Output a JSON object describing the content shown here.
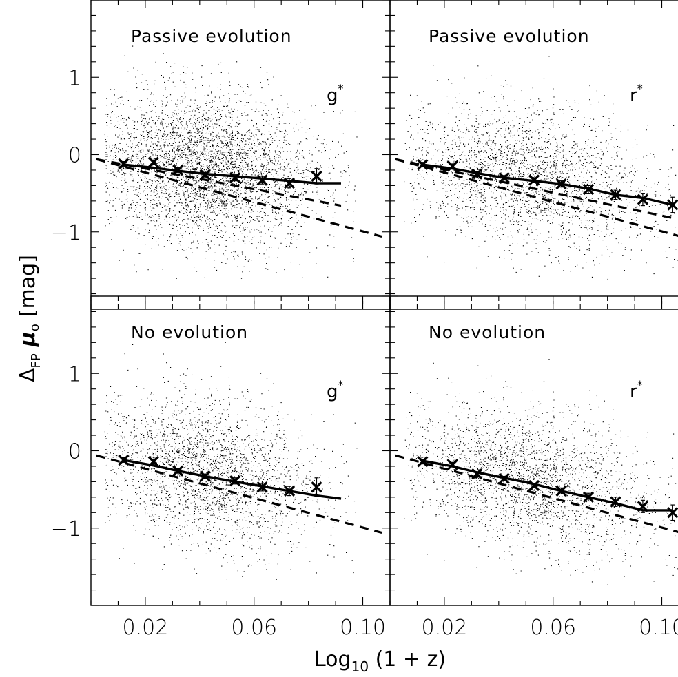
{
  "chart_data": {
    "type": "scatter",
    "xlabel": "Log",
    "xlabel_sub": "10",
    "xlabel_rest": " (1 + z)",
    "ylabel": "Δ",
    "ylabel_sub": "FP",
    "ylabel_mu": "μ",
    "ylabel_mu_sub": "o",
    "ylabel_unit": "[mag]",
    "xlim": [
      0.0,
      0.11
    ],
    "ylim": [
      -2.0,
      2.0
    ],
    "x_ticks": [
      0.02,
      0.06,
      0.1
    ],
    "x_tick_labels": [
      "0.02",
      "0.06",
      "0.10"
    ],
    "y_ticks": [
      1,
      0,
      -1
    ],
    "y_tick_labels": [
      "1",
      "0",
      "−1"
    ],
    "panels": [
      {
        "title": "Passive evolution",
        "band": "g",
        "band_sup": "*",
        "binned_x": [
          0.012,
          0.023,
          0.032,
          0.042,
          0.053,
          0.063,
          0.073,
          0.083
        ],
        "binned_y": [
          -0.12,
          -0.1,
          -0.2,
          -0.26,
          -0.3,
          -0.33,
          -0.37,
          -0.28
        ],
        "binned_err": [
          0.03,
          0.03,
          0.03,
          0.03,
          0.04,
          0.05,
          0.06,
          0.1
        ],
        "fit_line_x": [
          0.012,
          0.023,
          0.032,
          0.042,
          0.053,
          0.063,
          0.073,
          0.083,
          0.092
        ],
        "fit_line_y": [
          -0.13,
          -0.17,
          -0.21,
          -0.25,
          -0.28,
          -0.31,
          -0.34,
          -0.37,
          -0.37
        ],
        "dashed_lines": [
          {
            "x": [
              0.002,
              0.092
            ],
            "y": [
              -0.06,
              -0.66
            ]
          },
          {
            "x": [
              0.002,
              0.107
            ],
            "y": [
              -0.06,
              -1.06
            ]
          }
        ],
        "cloud": {
          "x_mean": 0.042,
          "x_sd": 0.02,
          "x_min": 0.005,
          "x_max": 0.098,
          "y_intercept": -0.05,
          "y_slope": -3.5,
          "y_sd": 0.48,
          "n": 5000
        }
      },
      {
        "title": "Passive evolution",
        "band": "r",
        "band_sup": "*",
        "binned_x": [
          0.012,
          0.023,
          0.032,
          0.042,
          0.053,
          0.063,
          0.073,
          0.083,
          0.093,
          0.104
        ],
        "binned_y": [
          -0.13,
          -0.15,
          -0.25,
          -0.3,
          -0.33,
          -0.38,
          -0.45,
          -0.52,
          -0.58,
          -0.65
        ],
        "binned_err": [
          0.03,
          0.03,
          0.03,
          0.03,
          0.03,
          0.04,
          0.05,
          0.06,
          0.08,
          0.1
        ],
        "fit_line_x": [
          0.012,
          0.023,
          0.032,
          0.042,
          0.053,
          0.063,
          0.073,
          0.083,
          0.093,
          0.104
        ],
        "fit_line_y": [
          -0.13,
          -0.18,
          -0.24,
          -0.3,
          -0.34,
          -0.38,
          -0.44,
          -0.52,
          -0.56,
          -0.65
        ],
        "dashed_lines": [
          {
            "x": [
              0.002,
              0.104
            ],
            "y": [
              -0.06,
              -0.82
            ]
          },
          {
            "x": [
              0.002,
              0.107
            ],
            "y": [
              -0.06,
              -1.06
            ]
          }
        ],
        "cloud": {
          "x_mean": 0.05,
          "x_sd": 0.023,
          "x_min": 0.005,
          "x_max": 0.108,
          "y_intercept": -0.05,
          "y_slope": -5.0,
          "y_sd": 0.45,
          "n": 6500
        }
      },
      {
        "title": "No evolution",
        "band": "g",
        "band_sup": "*",
        "binned_x": [
          0.012,
          0.023,
          0.032,
          0.042,
          0.053,
          0.063,
          0.073,
          0.083
        ],
        "binned_y": [
          -0.12,
          -0.14,
          -0.26,
          -0.33,
          -0.39,
          -0.47,
          -0.52,
          -0.47
        ],
        "binned_err": [
          0.03,
          0.03,
          0.03,
          0.03,
          0.04,
          0.05,
          0.06,
          0.12
        ],
        "fit_line_x": [
          0.012,
          0.023,
          0.032,
          0.042,
          0.053,
          0.063,
          0.073,
          0.083,
          0.092
        ],
        "fit_line_y": [
          -0.12,
          -0.19,
          -0.26,
          -0.33,
          -0.4,
          -0.46,
          -0.52,
          -0.58,
          -0.62
        ],
        "dashed_lines": [
          {
            "x": [
              0.002,
              0.107
            ],
            "y": [
              -0.06,
              -1.06
            ]
          }
        ],
        "cloud": {
          "x_mean": 0.042,
          "x_sd": 0.02,
          "x_min": 0.005,
          "x_max": 0.098,
          "y_intercept": -0.05,
          "y_slope": -5.5,
          "y_sd": 0.48,
          "n": 5000
        }
      },
      {
        "title": "No evolution",
        "band": "r",
        "band_sup": "*",
        "binned_x": [
          0.012,
          0.023,
          0.032,
          0.042,
          0.053,
          0.063,
          0.073,
          0.083,
          0.093,
          0.104
        ],
        "binned_y": [
          -0.14,
          -0.18,
          -0.3,
          -0.36,
          -0.45,
          -0.52,
          -0.6,
          -0.66,
          -0.72,
          -0.8
        ],
        "binned_err": [
          0.03,
          0.03,
          0.03,
          0.03,
          0.03,
          0.04,
          0.05,
          0.06,
          0.08,
          0.1
        ],
        "fit_line_x": [
          0.012,
          0.023,
          0.032,
          0.042,
          0.053,
          0.063,
          0.073,
          0.083,
          0.093,
          0.104
        ],
        "fit_line_y": [
          -0.13,
          -0.2,
          -0.28,
          -0.35,
          -0.43,
          -0.52,
          -0.6,
          -0.68,
          -0.77,
          -0.77
        ],
        "dashed_lines": [
          {
            "x": [
              0.002,
              0.107
            ],
            "y": [
              -0.06,
              -1.06
            ]
          }
        ],
        "cloud": {
          "x_mean": 0.05,
          "x_sd": 0.023,
          "x_min": 0.005,
          "x_max": 0.108,
          "y_intercept": -0.05,
          "y_slope": -6.5,
          "y_sd": 0.45,
          "n": 6500
        }
      }
    ],
    "grid": false,
    "legend": "none"
  }
}
